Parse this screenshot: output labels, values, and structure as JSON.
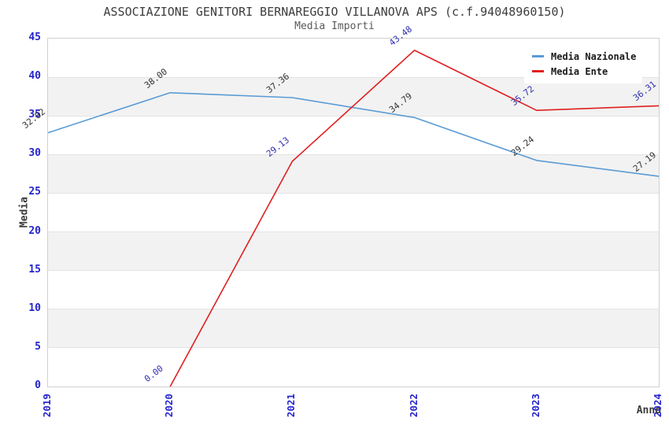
{
  "chart_data": {
    "type": "line",
    "title": "ASSOCIAZIONE GENITORI BERNAREGGIO VILLANOVA APS (c.f.94048960150)",
    "subtitle": "Media Importi",
    "xlabel": "Anno",
    "ylabel": "Media",
    "categories": [
      "2019",
      "2020",
      "2021",
      "2022",
      "2023",
      "2024"
    ],
    "ylim": [
      0,
      45
    ],
    "ytick_step": 5,
    "yticks": [
      0,
      5,
      10,
      15,
      20,
      25,
      30,
      35,
      40,
      45
    ],
    "grid": "horizontal gridlines with alternating shaded bands",
    "legend_position": "top-right inside plot",
    "series": [
      {
        "name": "Media Nazionale",
        "color": "#5b9bd5",
        "label_color": "#333333",
        "values": [
          32.82,
          38.0,
          37.36,
          34.79,
          29.24,
          27.19
        ],
        "point_labels": [
          "32.82",
          "38.00",
          "37.36",
          "34.79",
          "29.24",
          "27.19"
        ]
      },
      {
        "name": "Media Ente",
        "color": "#e02020",
        "label_color": "#3030b0",
        "values": [
          null,
          0.0,
          29.13,
          43.48,
          35.72,
          36.31
        ],
        "point_labels": [
          null,
          "0.00",
          "29.13",
          "43.48",
          "35.72",
          "36.31"
        ]
      }
    ]
  },
  "colors": {
    "tick_label": "#2424cc",
    "axis_title": "#3a3a3a",
    "title": "#3d3d3d",
    "subtitle": "#5a5a5a",
    "plot_border": "#d0d0d0",
    "gridline": "#e3e3e3",
    "band": "#f2f2f2",
    "legend_bg": "#ffffff"
  }
}
